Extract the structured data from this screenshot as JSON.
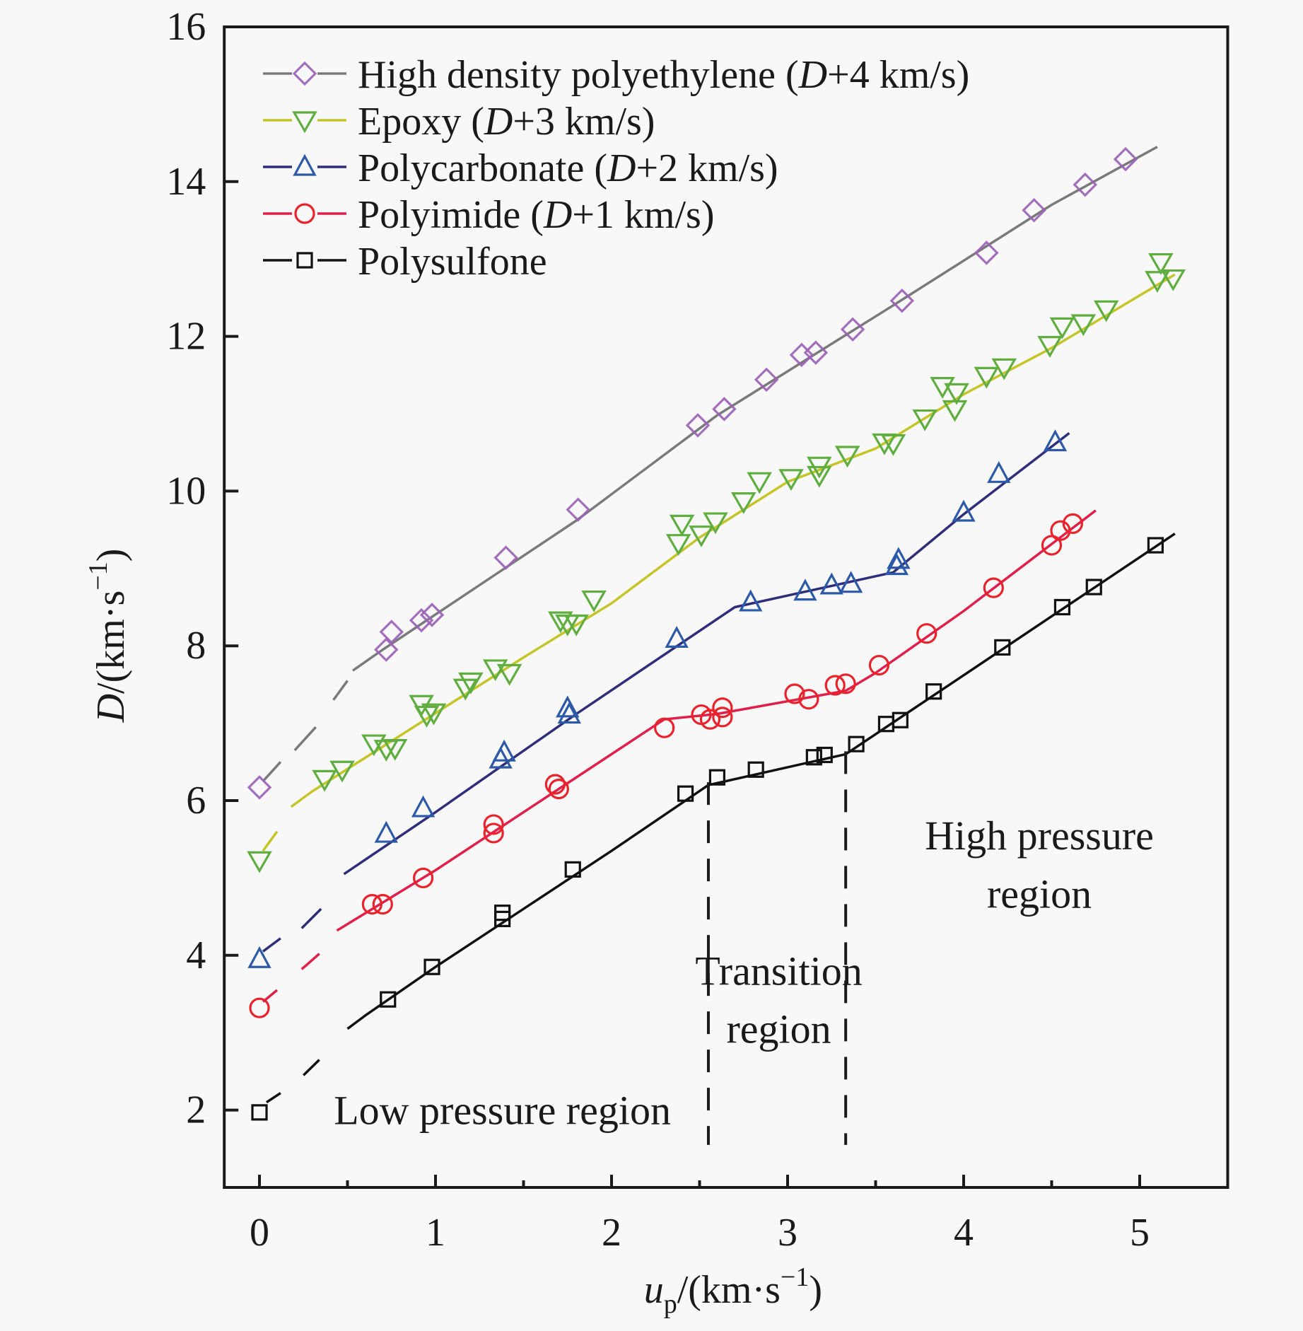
{
  "chart_data": {
    "type": "scatter",
    "title": "",
    "xlabel": "u_p/(km·s^-1)",
    "xlabel_parts": {
      "var": "u",
      "sub": "p",
      "unit": "/(km·s",
      "sup": "−1",
      "close": ")"
    },
    "ylabel": "D/(km·s^-1)",
    "ylabel_parts": {
      "var": "D",
      "unit": "/(km·s",
      "sup": "−1",
      "close": ")"
    },
    "xlim": [
      -0.2,
      5.5
    ],
    "ylim": [
      1,
      16
    ],
    "x_ticks": [
      0,
      1,
      2,
      3,
      4,
      5
    ],
    "x_minor_ticks": [
      0.5,
      1.5,
      2.5,
      3.5,
      4.5
    ],
    "y_ticks": [
      2,
      4,
      6,
      8,
      10,
      12,
      14,
      16
    ],
    "grid": false,
    "legend_position": "top-left",
    "series": [
      {
        "name": "High density polyethylene (D+4 km/s)",
        "legend_main": "High density polyethylene (",
        "legend_italic": "D",
        "legend_tail": "+4 km/s)",
        "marker": "diamond",
        "marker_color": "#a35cc4",
        "marker_edge": "#7a7a7a",
        "line_color": "#7a7a7a",
        "x": [
          0,
          0.72,
          0.75,
          0.92,
          0.98,
          1.4,
          1.81,
          2.49,
          2.64,
          2.88,
          3.08,
          3.16,
          3.37,
          3.65,
          4.13,
          4.4,
          4.69,
          4.92
        ],
        "y": [
          6.17,
          7.95,
          8.18,
          8.33,
          8.4,
          9.14,
          9.76,
          10.85,
          11.06,
          11.44,
          11.76,
          11.79,
          12.09,
          12.46,
          13.08,
          13.63,
          13.96,
          14.29
        ],
        "fit_dashed": [
          [
            [
              0.02,
              6.25
            ],
            [
              0.12,
              6.5
            ]
          ],
          [
            [
              0.2,
              6.65
            ],
            [
              0.32,
              6.95
            ]
          ],
          [
            [
              0.42,
              7.3
            ],
            [
              0.5,
              7.55
            ]
          ]
        ],
        "fit_solid": [
          [
            0.53,
            7.68
          ],
          [
            0.7,
            7.95
          ],
          [
            1.8,
            9.62
          ],
          [
            2.6,
            10.98
          ],
          [
            3.6,
            12.4
          ],
          [
            4.5,
            13.7
          ],
          [
            5.1,
            14.45
          ]
        ]
      },
      {
        "name": "Epoxy (D+3 km/s)",
        "legend_main": "Epoxy (",
        "legend_italic": "D",
        "legend_tail": "+3 km/s)",
        "marker": "triangle-down",
        "marker_color": "#5fae3f",
        "marker_edge": "#5fae3f",
        "line_color": "#c5c52a",
        "x": [
          0,
          0.37,
          0.47,
          0.65,
          0.72,
          0.77,
          0.92,
          0.95,
          0.99,
          1.17,
          1.2,
          1.34,
          1.42,
          1.71,
          1.75,
          1.8,
          1.9,
          2.38,
          2.4,
          2.51,
          2.59,
          2.75,
          2.84,
          3.02,
          3.18,
          3.18,
          3.34,
          3.55,
          3.6,
          3.78,
          3.88,
          3.95,
          3.96,
          4.13,
          4.23,
          4.49,
          4.56,
          4.68,
          4.81,
          5.12,
          5.1,
          5.19
        ],
        "y": [
          5.23,
          6.28,
          6.4,
          6.74,
          6.67,
          6.68,
          7.25,
          7.11,
          7.14,
          7.46,
          7.54,
          7.71,
          7.65,
          8.33,
          8.29,
          8.29,
          8.6,
          9.33,
          9.58,
          9.44,
          9.61,
          9.87,
          10.13,
          10.17,
          10.21,
          10.33,
          10.47,
          10.63,
          10.62,
          10.94,
          11.36,
          11.06,
          11.28,
          11.49,
          11.6,
          11.89,
          12.13,
          12.17,
          12.35,
          12.96,
          12.73,
          12.75
        ],
        "fit_dashed": [
          [
            [
              0.02,
              5.35
            ],
            [
              0.1,
              5.6
            ]
          ]
        ],
        "fit_solid": [
          [
            0.18,
            5.92
          ],
          [
            0.3,
            6.12
          ],
          [
            1.0,
            7.13
          ],
          [
            1.5,
            7.85
          ],
          [
            2.0,
            8.55
          ],
          [
            2.5,
            9.4
          ],
          [
            3.0,
            10.12
          ],
          [
            3.5,
            10.55
          ],
          [
            4.0,
            11.25
          ],
          [
            4.5,
            11.85
          ],
          [
            5.2,
            12.8
          ]
        ]
      },
      {
        "name": "Polycarbonate (D+2 km/s)",
        "legend_main": "Polycarbonate (",
        "legend_italic": "D",
        "legend_tail": "+2 km/s)",
        "marker": "triangle-up",
        "marker_color": "#2d5aa8",
        "marker_edge": "#2d5aa8",
        "line_color": "#2e2e7a",
        "x": [
          0,
          0.72,
          0.93,
          1.37,
          1.39,
          1.75,
          1.76,
          2.37,
          2.79,
          3.1,
          3.25,
          3.36,
          3.62,
          3.63,
          4.0,
          4.2,
          4.52
        ],
        "y": [
          3.95,
          5.57,
          5.9,
          6.53,
          6.62,
          7.19,
          7.11,
          8.09,
          8.56,
          8.7,
          8.78,
          8.8,
          9.03,
          9.11,
          9.72,
          10.22,
          10.63
        ],
        "fit_dashed": [
          [
            [
              0.02,
              4.05
            ],
            [
              0.12,
              4.22
            ]
          ],
          [
            [
              0.24,
              4.35
            ],
            [
              0.35,
              4.6
            ]
          ]
        ],
        "fit_solid": [
          [
            0.48,
            5.05
          ],
          [
            1.0,
            5.85
          ],
          [
            1.8,
            7.12
          ],
          [
            2.7,
            8.5
          ],
          [
            3.6,
            8.95
          ],
          [
            4.0,
            9.7
          ],
          [
            4.6,
            10.75
          ]
        ]
      },
      {
        "name": "Polyimide (D+1 km/s)",
        "legend_main": "Polyimide (",
        "legend_italic": "D",
        "legend_tail": "+1 km/s)",
        "marker": "circle",
        "marker_color": "#e8232b",
        "marker_edge": "#e8232b",
        "line_color": "#e0204a",
        "x": [
          0,
          0.64,
          0.7,
          0.93,
          1.33,
          1.33,
          1.68,
          1.7,
          2.3,
          2.51,
          2.56,
          2.63,
          2.63,
          3.04,
          3.12,
          3.27,
          3.33,
          3.52,
          3.79,
          4.17,
          4.5,
          4.55,
          4.62
        ],
        "y": [
          3.32,
          4.66,
          4.66,
          5.0,
          5.69,
          5.58,
          6.21,
          6.15,
          6.94,
          7.11,
          7.05,
          7.2,
          7.08,
          7.38,
          7.31,
          7.49,
          7.51,
          7.75,
          8.16,
          8.75,
          9.3,
          9.49,
          9.58
        ],
        "fit_dashed": [
          [
            [
              0.02,
              3.4
            ],
            [
              0.1,
              3.55
            ]
          ],
          [
            [
              0.24,
              3.82
            ],
            [
              0.34,
              4.02
            ]
          ]
        ],
        "fit_solid": [
          [
            0.44,
            4.32
          ],
          [
            1.0,
            5.1
          ],
          [
            2.3,
            7.05
          ],
          [
            2.6,
            7.12
          ],
          [
            3.33,
            7.42
          ],
          [
            3.5,
            7.65
          ],
          [
            4.0,
            8.45
          ],
          [
            4.75,
            9.75
          ]
        ]
      },
      {
        "name": "Polysulfone",
        "legend_main": "Polysulfone",
        "legend_italic": "",
        "legend_tail": "",
        "marker": "square",
        "marker_color": "#111111",
        "marker_edge": "#111111",
        "line_color": "#111111",
        "x": [
          0,
          0.73,
          0.98,
          1.38,
          1.38,
          1.78,
          2.42,
          2.6,
          2.82,
          3.15,
          3.21,
          3.39,
          3.56,
          3.64,
          3.83,
          4.22,
          4.56,
          4.74,
          5.09
        ],
        "y": [
          1.97,
          3.43,
          3.85,
          4.55,
          4.47,
          5.11,
          6.09,
          6.3,
          6.4,
          6.56,
          6.59,
          6.73,
          6.99,
          7.04,
          7.41,
          7.98,
          8.5,
          8.76,
          9.3
        ],
        "fit_dashed": [
          [
            [
              0.04,
              2.1
            ],
            [
              0.12,
              2.22
            ]
          ],
          [
            [
              0.25,
              2.45
            ],
            [
              0.34,
              2.65
            ]
          ]
        ],
        "fit_solid": [
          [
            0.5,
            3.05
          ],
          [
            0.6,
            3.22
          ],
          [
            1.0,
            3.85
          ],
          [
            2.0,
            5.35
          ],
          [
            2.55,
            6.2
          ],
          [
            3.33,
            6.6
          ],
          [
            4.0,
            7.62
          ],
          [
            5.2,
            9.45
          ]
        ]
      }
    ],
    "region_dividers": [
      2.55,
      3.33
    ],
    "annotations": [
      {
        "id": "low",
        "lines": [
          "Low pressure region"
        ],
        "x": 1.38,
        "y": 2.0
      },
      {
        "id": "transition",
        "lines": [
          "Transition",
          "region"
        ],
        "x": 2.95,
        "y": [
          3.8,
          3.05
        ]
      },
      {
        "id": "high",
        "lines": [
          "High pressure",
          "region"
        ],
        "x": 4.43,
        "y": [
          5.55,
          4.8
        ]
      }
    ]
  }
}
